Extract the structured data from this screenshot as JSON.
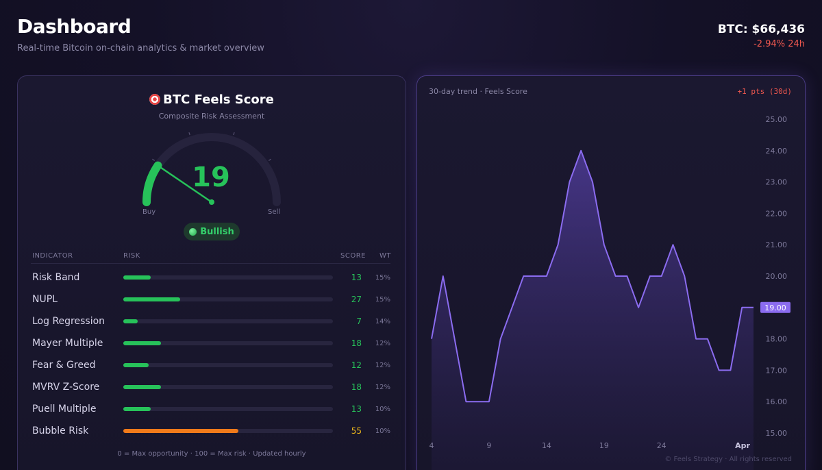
{
  "header": {
    "title": "Dashboard",
    "subtitle": "Real-time Bitcoin on-chain analytics & market overview",
    "price": "BTC: $66,436",
    "price_change": "-2.94% 24h"
  },
  "score_card": {
    "title": "BTC Feels Score",
    "subtitle": "Composite Risk Assessment",
    "score": "19",
    "score_value": 19,
    "gauge_min_label": "Buy",
    "gauge_max_label": "Sell",
    "status": "Bullish",
    "columns": {
      "indicator": "INDICATOR",
      "risk": "RISK",
      "score": "SCORE",
      "weight": "WT"
    },
    "indicators": [
      {
        "name": "Risk Band",
        "score": "13",
        "value": 13,
        "weight": "15%",
        "color": "#27c25a"
      },
      {
        "name": "NUPL",
        "score": "27",
        "value": 27,
        "weight": "15%",
        "color": "#27c25a"
      },
      {
        "name": "Log Regression",
        "score": "7",
        "value": 7,
        "weight": "14%",
        "color": "#27c25a"
      },
      {
        "name": "Mayer Multiple",
        "score": "18",
        "value": 18,
        "weight": "12%",
        "color": "#27c25a"
      },
      {
        "name": "Fear & Greed",
        "score": "12",
        "value": 12,
        "weight": "12%",
        "color": "#27c25a"
      },
      {
        "name": "MVRV Z-Score",
        "score": "18",
        "value": 18,
        "weight": "12%",
        "color": "#27c25a"
      },
      {
        "name": "Puell Multiple",
        "score": "13",
        "value": 13,
        "weight": "10%",
        "color": "#27c25a"
      },
      {
        "name": "Bubble Risk",
        "score": "55",
        "value": 55,
        "weight": "10%",
        "color": "#f07a1a"
      }
    ],
    "footer_note": "0 = Max opportunity · 100 = Max risk · Updated hourly"
  },
  "trend_card": {
    "label": "30-day trend · Feels Score",
    "change": "+1 pts (30d)",
    "copyright": "© Feels Strategy · All rights reserved"
  },
  "colors": {
    "accent": "#8b6cf0",
    "bullish": "#27c25a",
    "bearish": "#f0584f",
    "warning": "#f07a1a"
  },
  "chart_data": {
    "type": "area",
    "x_tick_labels": [
      "4",
      "9",
      "14",
      "19",
      "24",
      "Apr"
    ],
    "y_tick_labels": [
      "15.00",
      "16.00",
      "17.00",
      "18.00",
      "19.00",
      "20.00",
      "21.00",
      "22.00",
      "23.00",
      "24.00",
      "25.00"
    ],
    "ylim": [
      15,
      25
    ],
    "x": [
      1,
      2,
      3,
      4,
      5,
      6,
      7,
      8,
      9,
      10,
      11,
      12,
      13,
      14,
      15,
      16,
      17,
      18,
      19,
      20,
      21,
      22,
      23,
      24,
      25,
      26,
      27,
      28,
      29
    ],
    "values": [
      18,
      20,
      18,
      16,
      16,
      16,
      18,
      19,
      20,
      20,
      20,
      21,
      23,
      24,
      23,
      21,
      20,
      20,
      19,
      20,
      20,
      21,
      20,
      18,
      18,
      17,
      17,
      19,
      19
    ],
    "current_label": "19.00",
    "grid": false
  }
}
